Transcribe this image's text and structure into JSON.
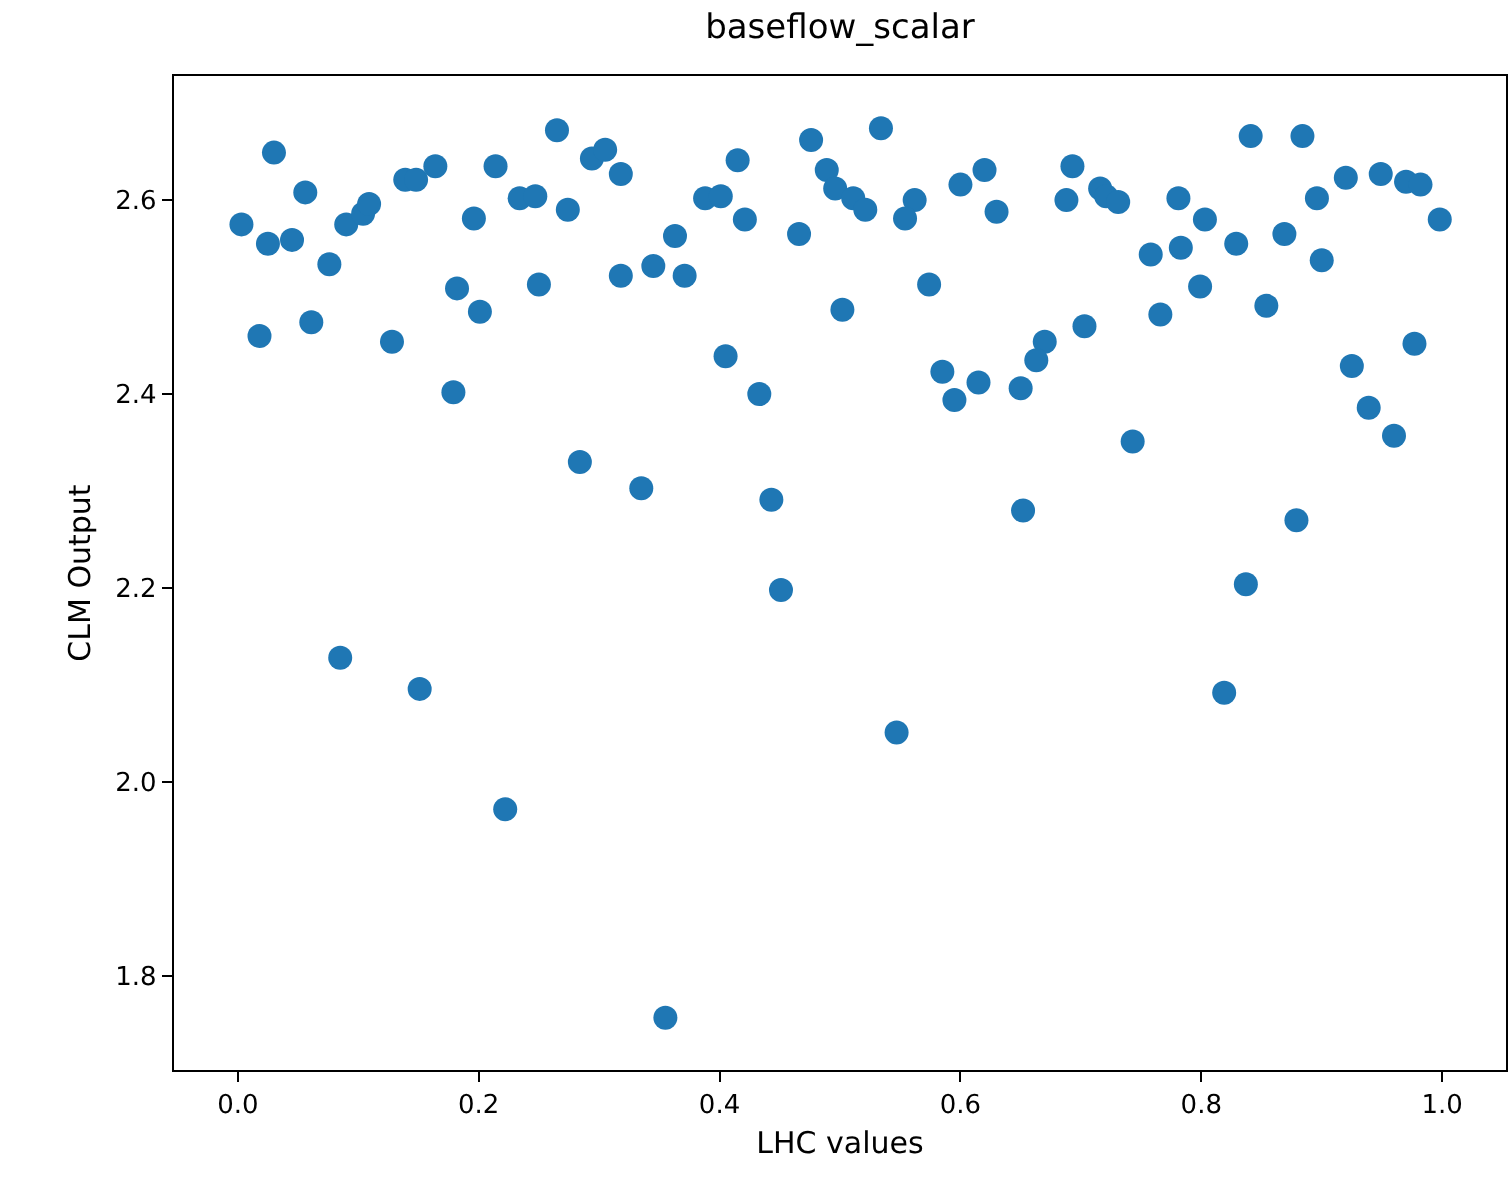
{
  "chart_data": {
    "type": "scatter",
    "title": "baseflow_scalar",
    "xlabel": "LHC values",
    "ylabel": "CLM Output",
    "xlim": [
      -0.053,
      1.053
    ],
    "ylim": [
      1.703,
      2.728
    ],
    "xticks": [
      {
        "value": 0,
        "label": "0.0"
      },
      {
        "value": 0.2,
        "label": "0.2"
      },
      {
        "value": 0.4,
        "label": "0.4"
      },
      {
        "value": 0.6,
        "label": "0.6"
      },
      {
        "value": 0.8,
        "label": "0.8"
      },
      {
        "value": 1,
        "label": "1.0"
      }
    ],
    "yticks": [
      {
        "value": 1.8,
        "label": "1.8"
      },
      {
        "value": 2,
        "label": "2.0"
      },
      {
        "value": 2.2,
        "label": "2.2"
      },
      {
        "value": 2.4,
        "label": "2.4"
      },
      {
        "value": 2.6,
        "label": "2.6"
      }
    ],
    "marker": "circle",
    "series": [
      {
        "color": "#1f77b4",
        "x": [
          0.003,
          0.018,
          0.025,
          0.03,
          0.045,
          0.056,
          0.061,
          0.076,
          0.09,
          0.104,
          0.109,
          0.128,
          0.139,
          0.148,
          0.164,
          0.179,
          0.182,
          0.196,
          0.201,
          0.214,
          0.234,
          0.247,
          0.25,
          0.265,
          0.274,
          0.284,
          0.294,
          0.305,
          0.318,
          0.318,
          0.085,
          0.151,
          0.222,
          0.355,
          0.451,
          0.547,
          0.819,
          0.837,
          0.415,
          0.476,
          0.534,
          0.489,
          0.496,
          0.511,
          0.521,
          0.388,
          0.401,
          0.421,
          0.363,
          0.466,
          0.345,
          0.371,
          0.562,
          0.554,
          0.6,
          0.62,
          0.63,
          0.574,
          0.502,
          0.405,
          0.433,
          0.585,
          0.595,
          0.615,
          0.65,
          0.67,
          0.663,
          0.335,
          0.443,
          0.652,
          0.841,
          0.884,
          0.693,
          0.688,
          0.716,
          0.721,
          0.731,
          0.781,
          0.803,
          0.758,
          0.783,
          0.829,
          0.869,
          0.896,
          0.92,
          0.949,
          0.97,
          0.982,
          0.998,
          0.9,
          0.799,
          0.766,
          0.854,
          0.703,
          0.977,
          0.925,
          0.939,
          0.96,
          0.743,
          0.879
        ],
        "values": [
          2.575,
          2.46,
          2.555,
          2.649,
          2.559,
          2.608,
          2.474,
          2.534,
          2.575,
          2.586,
          2.596,
          2.454,
          2.621,
          2.621,
          2.635,
          2.402,
          2.509,
          2.581,
          2.485,
          2.635,
          2.602,
          2.604,
          2.513,
          2.672,
          2.59,
          2.33,
          2.643,
          2.652,
          2.627,
          2.522,
          2.128,
          2.096,
          1.972,
          1.757,
          2.198,
          2.051,
          2.092,
          2.204,
          2.641,
          2.662,
          2.674,
          2.631,
          2.612,
          2.602,
          2.59,
          2.602,
          2.604,
          2.58,
          2.563,
          2.565,
          2.532,
          2.522,
          2.6,
          2.581,
          2.616,
          2.631,
          2.588,
          2.513,
          2.487,
          2.439,
          2.4,
          2.423,
          2.394,
          2.412,
          2.406,
          2.454,
          2.435,
          2.303,
          2.291,
          2.28,
          2.666,
          2.666,
          2.635,
          2.6,
          2.612,
          2.604,
          2.598,
          2.602,
          2.58,
          2.544,
          2.551,
          2.555,
          2.565,
          2.602,
          2.623,
          2.627,
          2.619,
          2.616,
          2.58,
          2.538,
          2.511,
          2.482,
          2.491,
          2.47,
          2.452,
          2.429,
          2.386,
          2.357,
          2.351,
          2.27
        ]
      }
    ]
  }
}
